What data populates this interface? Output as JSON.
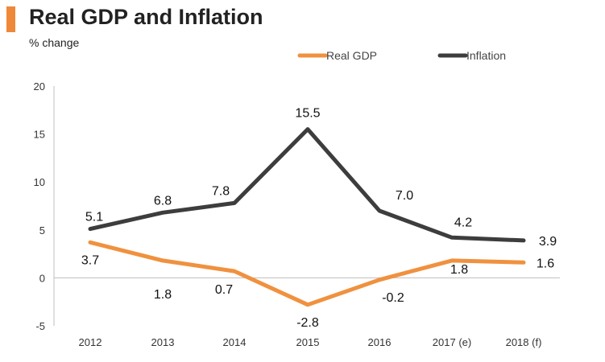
{
  "colors": {
    "accent": "#F0883A",
    "gdp": "#F0913F",
    "inflation": "#3D3D3D",
    "axis": "#BFBFBF"
  },
  "chart_data": {
    "type": "line",
    "title": "Real GDP and Inflation",
    "ylabel": "% change",
    "xlabel": "",
    "categories": [
      "2012",
      "2013",
      "2014",
      "2015",
      "2016",
      "2017 (e)",
      "2018 (f)"
    ],
    "ylim": [
      -5,
      20
    ],
    "yticks": [
      -5,
      0,
      5,
      10,
      15,
      20
    ],
    "legend_position": "top-right",
    "series": [
      {
        "name": "Real GDP",
        "values": [
          3.7,
          1.8,
          0.7,
          -2.8,
          -0.2,
          1.8,
          1.6
        ],
        "labels": [
          "3.7",
          "1.8",
          "0.7",
          "-2.8",
          "-0.2",
          "1.8",
          "1.6"
        ]
      },
      {
        "name": "Inflation",
        "values": [
          5.1,
          6.8,
          7.8,
          15.5,
          7.0,
          4.2,
          3.9
        ],
        "labels": [
          "5.1",
          "6.8",
          "7.8",
          "15.5",
          "7.0",
          "4.2",
          "3.9"
        ]
      }
    ]
  }
}
